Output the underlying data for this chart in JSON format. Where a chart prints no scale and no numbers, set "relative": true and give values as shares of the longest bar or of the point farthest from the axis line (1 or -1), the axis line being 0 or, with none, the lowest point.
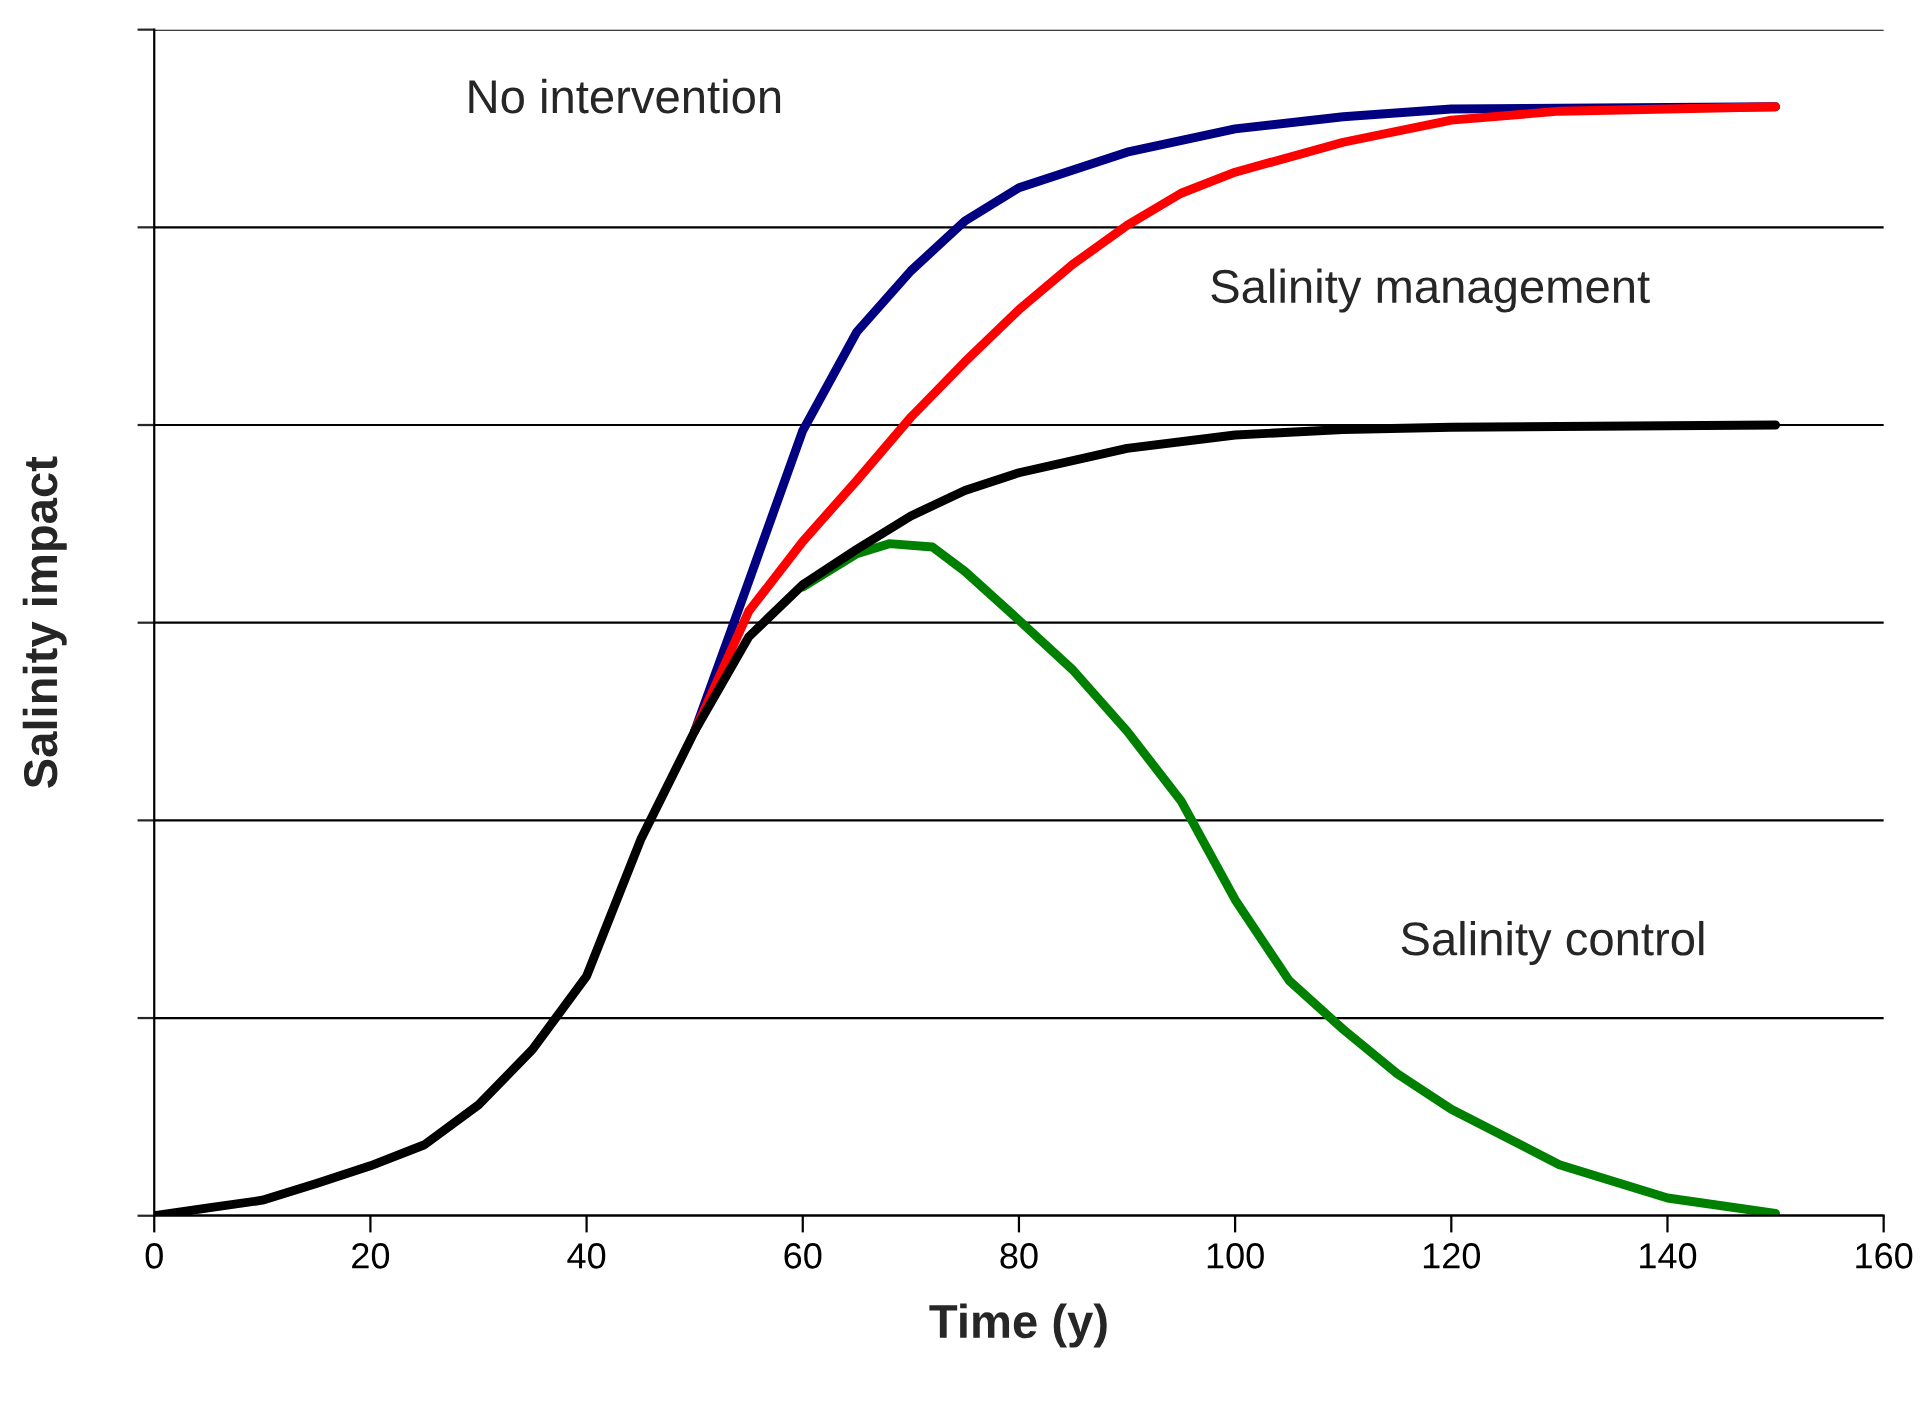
{
  "chart_data": {
    "type": "line",
    "relative": true,
    "xlabel": "Time (y)",
    "ylabel": "Salinity impact",
    "xlim": [
      0,
      160
    ],
    "xticks": [
      0,
      20,
      40,
      60,
      80,
      100,
      120,
      140,
      160
    ],
    "grid": "y",
    "marker": "none",
    "line_style": "solid",
    "annotations": [
      "No intervention",
      "Salinity management",
      "Salinity control"
    ],
    "series": [
      {
        "color": "#000080",
        "x": [
          50,
          55,
          60,
          65,
          70,
          75,
          80,
          90,
          100,
          110,
          120,
          150
        ],
        "values": [
          0.437,
          0.572,
          0.708,
          0.797,
          0.852,
          0.897,
          0.927,
          0.959,
          0.98,
          0.991,
          0.998,
          1
        ]
      },
      {
        "color": "#ff0000",
        "x": [
          50,
          55,
          60,
          65,
          70,
          75,
          80,
          85,
          90,
          95,
          100,
          110,
          120,
          130,
          150
        ],
        "values": [
          0.437,
          0.545,
          0.608,
          0.663,
          0.72,
          0.77,
          0.817,
          0.858,
          0.893,
          0.922,
          0.941,
          0.968,
          0.988,
          0.996,
          1
        ]
      },
      {
        "color": "#008000",
        "x": [
          60,
          65,
          68,
          72,
          75,
          80,
          85,
          90,
          95,
          100,
          105,
          110,
          115,
          120,
          130,
          140,
          150
        ],
        "values": [
          0.567,
          0.597,
          0.606,
          0.603,
          0.581,
          0.537,
          0.492,
          0.437,
          0.374,
          0.285,
          0.212,
          0.168,
          0.128,
          0.096,
          0.046,
          0.016,
          0.002
        ]
      },
      {
        "color": "#000000",
        "x": [
          0,
          5,
          10,
          15,
          20,
          25,
          30,
          35,
          40,
          45,
          50,
          55,
          60,
          65,
          70,
          75,
          80,
          90,
          100,
          110,
          120,
          150
        ],
        "values": [
          0,
          0.007,
          0.014,
          0.029,
          0.045,
          0.064,
          0.1,
          0.15,
          0.216,
          0.339,
          0.437,
          0.522,
          0.569,
          0.601,
          0.631,
          0.654,
          0.67,
          0.692,
          0.704,
          0.709,
          0.711,
          0.713
        ]
      }
    ]
  }
}
